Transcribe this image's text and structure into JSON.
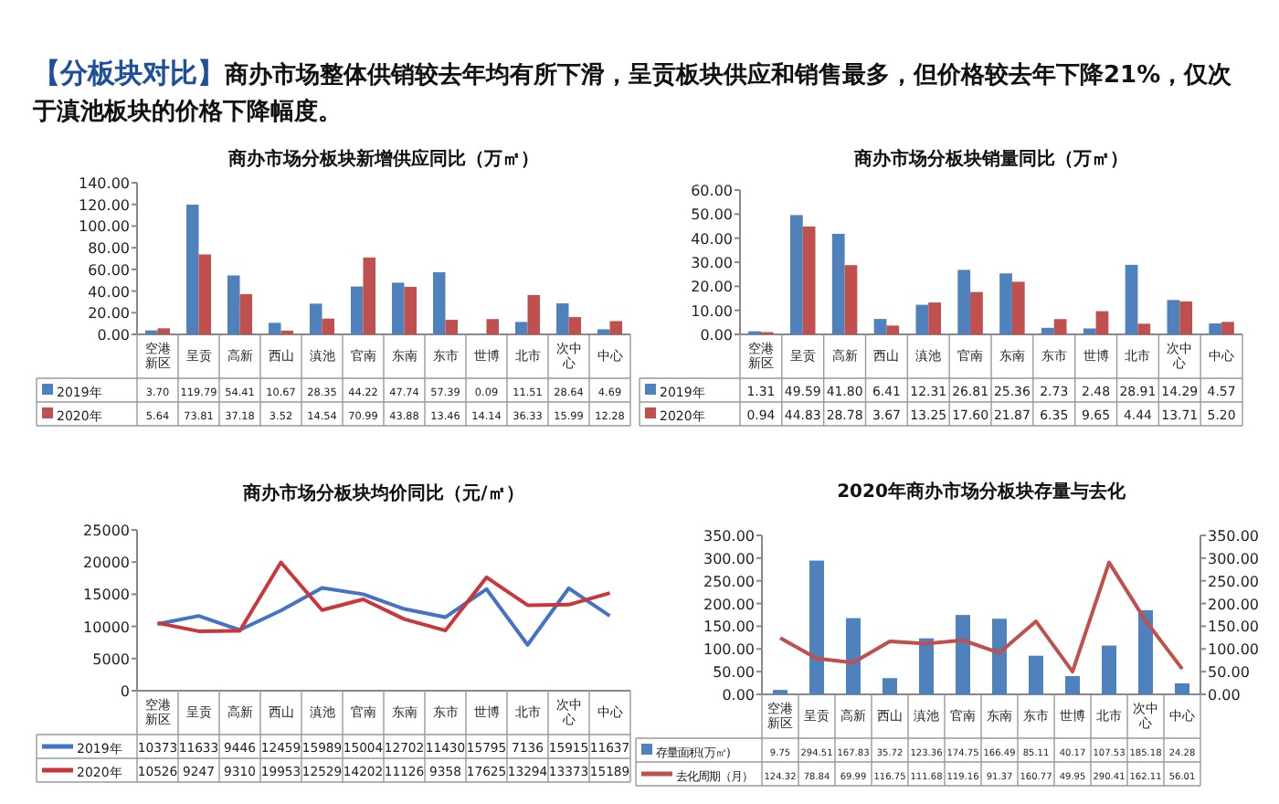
{
  "chart_data": [
    {
      "type": "other",
      "title": "【分板块对比】",
      "subtitle": "商办市场整体供销较去年均有所下滑，呈贡板块供应和销售最多，但价格较去年下降21%，仅次于滇池板块的价格下降幅度。"
    },
    {
      "type": "bar",
      "title": "商办市场分板块新增供应同比（万㎡）",
      "legend": "bottom",
      "categories": [
        "空港新区",
        "呈贡",
        "高新",
        "西山",
        "滇池",
        "官南",
        "东南",
        "东市",
        "世博",
        "北市",
        "次中心",
        "中心"
      ],
      "ylim": [
        0,
        140
      ],
      "yticks": [
        {
          "value": 0,
          "label": "0.00"
        },
        {
          "value": 20,
          "label": "20.00"
        },
        {
          "value": 40,
          "label": "40.00"
        },
        {
          "value": 60,
          "label": "60.00"
        },
        {
          "value": 80,
          "label": "80.00"
        },
        {
          "value": 100,
          "label": "100.00"
        },
        {
          "value": 120,
          "label": "120.00"
        },
        {
          "value": 140,
          "label": "140.00"
        }
      ],
      "series": [
        {
          "name": "2019年",
          "color": "#4f81bd",
          "values": [
            3.7,
            119.79,
            54.41,
            10.67,
            28.35,
            44.22,
            47.74,
            57.39,
            0.09,
            11.51,
            28.64,
            4.69
          ],
          "value_labels": [
            "3.70",
            "119.79",
            "54.41",
            "10.67",
            "28.35",
            "44.22",
            "47.74",
            "57.39",
            "0.09",
            "11.51",
            "28.64",
            "4.69"
          ]
        },
        {
          "name": "2020年",
          "color": "#c0504d",
          "values": [
            5.64,
            73.81,
            37.18,
            3.52,
            14.54,
            70.99,
            43.88,
            13.46,
            14.14,
            36.33,
            15.99,
            12.28
          ],
          "value_labels": [
            "5.64",
            "73.81",
            "37.18",
            "3.52",
            "14.54",
            "70.99",
            "43.88",
            "13.46",
            "14.14",
            "36.33",
            "15.99",
            "12.28"
          ]
        }
      ]
    },
    {
      "type": "bar",
      "title": "商办市场分板块销量同比（万㎡）",
      "legend": "bottom",
      "categories": [
        "空港新区",
        "呈贡",
        "高新",
        "西山",
        "滇池",
        "官南",
        "东南",
        "东市",
        "世博",
        "北市",
        "次中心",
        "中心"
      ],
      "ylim": [
        0,
        60
      ],
      "yticks": [
        {
          "value": 0,
          "label": "0.00"
        },
        {
          "value": 10,
          "label": "10.00"
        },
        {
          "value": 20,
          "label": "20.00"
        },
        {
          "value": 30,
          "label": "30.00"
        },
        {
          "value": 40,
          "label": "40.00"
        },
        {
          "value": 50,
          "label": "50.00"
        },
        {
          "value": 60,
          "label": "60.00"
        }
      ],
      "series": [
        {
          "name": "2019年",
          "color": "#4f81bd",
          "values": [
            1.31,
            49.59,
            41.8,
            6.41,
            12.31,
            26.81,
            25.36,
            2.73,
            2.48,
            28.91,
            14.29,
            4.57
          ],
          "value_labels": [
            "1.31",
            "49.59",
            "41.80",
            "6.41",
            "12.31",
            "26.81",
            "25.36",
            "2.73",
            "2.48",
            "28.91",
            "14.29",
            "4.57"
          ]
        },
        {
          "name": "2020年",
          "color": "#c0504d",
          "values": [
            0.94,
            44.83,
            28.78,
            3.67,
            13.25,
            17.6,
            21.87,
            6.35,
            9.65,
            4.44,
            13.71,
            5.2
          ],
          "value_labels": [
            "0.94",
            "44.83",
            "28.78",
            "3.67",
            "13.25",
            "17.60",
            "21.87",
            "6.35",
            "9.65",
            "4.44",
            "13.71",
            "5.20"
          ]
        }
      ]
    },
    {
      "type": "line",
      "title": "商办市场分板块均价同比（元/㎡）",
      "legend": "bottom",
      "marker": "none",
      "categories": [
        "空港新区",
        "呈贡",
        "高新",
        "西山",
        "滇池",
        "官南",
        "东南",
        "东市",
        "世博",
        "北市",
        "次中心",
        "中心"
      ],
      "ylim": [
        0,
        25000
      ],
      "yticks": [
        0,
        5000,
        10000,
        15000,
        20000,
        25000
      ],
      "series": [
        {
          "name": "2019年",
          "color": "#4472c4",
          "values": [
            10373,
            11633,
            9446,
            12459,
            15989,
            15004,
            12702,
            11430,
            15795,
            7136,
            15915,
            11637
          ],
          "value_labels": [
            "10373",
            "11633",
            "9446",
            "12459",
            "15989",
            "15004",
            "12702",
            "11430",
            "15795",
            "7136",
            "15915",
            "11637"
          ]
        },
        {
          "name": "2020年",
          "color": "#c9373a",
          "values": [
            10526,
            9247,
            9310,
            19953,
            12529,
            14202,
            11126,
            9358,
            17625,
            13294,
            13373,
            15189
          ],
          "value_labels": [
            "10526",
            "9247",
            "9310",
            "19953",
            "12529",
            "14202",
            "11126",
            "9358",
            "17625",
            "13294",
            "13373",
            "15189"
          ]
        }
      ]
    },
    {
      "type": "bar",
      "title": "2020年商办市场分板块存量与去化",
      "legend": "bottom",
      "categories": [
        "空港新区",
        "呈贡",
        "高新",
        "西山",
        "滇池",
        "官南",
        "东南",
        "东市",
        "世博",
        "北市",
        "次中心",
        "中心"
      ],
      "ylim": [
        0,
        350
      ],
      "yticks": [
        {
          "value": 0,
          "label": "0.00"
        },
        {
          "value": 50,
          "label": "50.00"
        },
        {
          "value": 100,
          "label": "100.00"
        },
        {
          "value": 150,
          "label": "150.00"
        },
        {
          "value": 200,
          "label": "200.00"
        },
        {
          "value": 250,
          "label": "250.00"
        },
        {
          "value": 300,
          "label": "300.00"
        },
        {
          "value": 350,
          "label": "350.00"
        }
      ],
      "y2lim": [
        0,
        350
      ],
      "y2ticks": [
        {
          "value": 0,
          "label": "0.00"
        },
        {
          "value": 50,
          "label": "50.00"
        },
        {
          "value": 100,
          "label": "100.00"
        },
        {
          "value": 150,
          "label": "150.00"
        },
        {
          "value": 200,
          "label": "200.00"
        },
        {
          "value": 250,
          "label": "250.00"
        },
        {
          "value": 300,
          "label": "300.00"
        },
        {
          "value": 350,
          "label": "350.00"
        }
      ],
      "series": [
        {
          "name": "存量面积(万㎡)",
          "color": "#4f81bd",
          "values": [
            9.75,
            294.51,
            167.83,
            35.72,
            123.36,
            174.75,
            166.49,
            85.11,
            40.17,
            107.53,
            185.18,
            24.28
          ],
          "value_labels": [
            "9.75",
            "294.51",
            "167.83",
            "35.72",
            "123.36",
            "174.75",
            "166.49",
            "85.11",
            "40.17",
            "107.53",
            "185.18",
            "24.28"
          ]
        },
        {
          "name": "去化周期（月）",
          "type": "line",
          "axis": "y2",
          "color": "#c0504d",
          "values": [
            124.32,
            78.84,
            69.99,
            116.75,
            111.68,
            119.16,
            91.37,
            160.77,
            49.95,
            290.41,
            162.11,
            56.01
          ],
          "value_labels": [
            "124.32",
            "78.84",
            "69.99",
            "116.75",
            "111.68",
            "119.16",
            "91.37",
            "160.77",
            "49.95",
            "290.41",
            "162.11",
            "56.01"
          ]
        }
      ]
    }
  ]
}
